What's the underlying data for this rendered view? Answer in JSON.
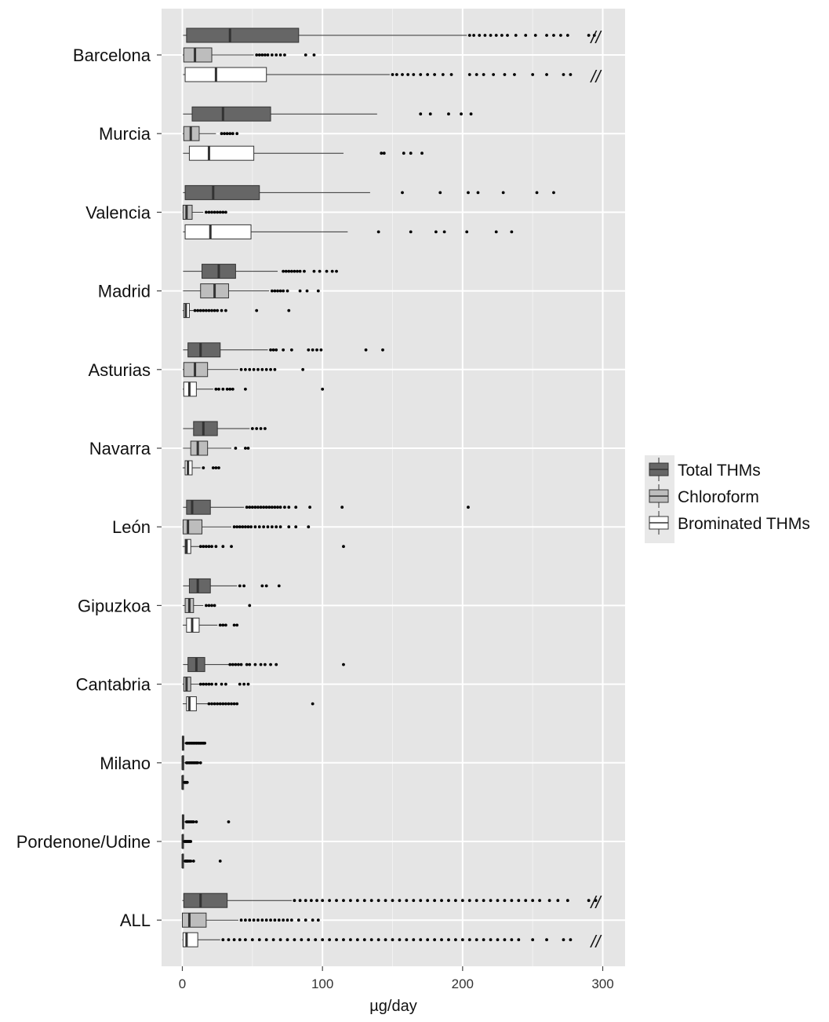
{
  "chart_data": {
    "type": "boxplot",
    "orientation": "horizontal",
    "xlabel": "µg/day",
    "xlim": [
      -15,
      315
    ],
    "xticks": [
      0,
      100,
      200,
      300
    ],
    "grid": true,
    "legend_position": "right",
    "break_marker": "//",
    "colors": {
      "Total THMs": "#666666",
      "Chloroform": "#bdbdbd",
      "Brominated THMs": "#ffffff",
      "panel": "#e5e5e5",
      "gridline": "#ffffff"
    },
    "series": [
      {
        "name": "Total THMs"
      },
      {
        "name": "Chloroform"
      },
      {
        "name": "Brominated THMs"
      }
    ],
    "categories": [
      {
        "name": "Barcelona",
        "groups": [
          {
            "series": "Total THMs",
            "whisker_low": 0.5,
            "q1": 3,
            "median": 34,
            "q3": 83,
            "whisker_high": 203,
            "outliers": [
              205,
              208,
              212,
              216,
              220,
              224,
              228,
              232,
              238,
              245,
              252,
              260,
              265,
              270,
              275,
              290,
              294
            ],
            "break": true
          },
          {
            "series": "Chloroform",
            "whisker_low": 0.3,
            "q1": 1,
            "median": 9,
            "q3": 21,
            "whisker_high": 51,
            "outliers": [
              53,
              55,
              57,
              59,
              61,
              64,
              67,
              70,
              73,
              88,
              94
            ]
          },
          {
            "series": "Brominated THMs",
            "whisker_low": 0.5,
            "q1": 2,
            "median": 24,
            "q3": 60,
            "whisker_high": 148,
            "outliers": [
              150,
              153,
              157,
              161,
              165,
              170,
              175,
              180,
              186,
              192,
              205,
              210,
              215,
              222,
              230,
              237,
              250,
              260,
              272,
              277
            ],
            "break": true
          }
        ]
      },
      {
        "name": "Murcia",
        "groups": [
          {
            "series": "Total THMs",
            "whisker_low": 0.5,
            "q1": 7,
            "median": 29,
            "q3": 63,
            "whisker_high": 139,
            "outliers": [
              170,
              177,
              190,
              199,
              206
            ]
          },
          {
            "series": "Chloroform",
            "whisker_low": 0.3,
            "q1": 1,
            "median": 6,
            "q3": 12,
            "whisker_high": 24,
            "outliers": [
              28,
              30,
              32,
              34,
              36,
              39
            ]
          },
          {
            "series": "Brominated THMs",
            "whisker_low": 0.5,
            "q1": 5,
            "median": 19,
            "q3": 51,
            "whisker_high": 115,
            "outliers": [
              142,
              144,
              158,
              163,
              171
            ]
          }
        ]
      },
      {
        "name": "Valencia",
        "groups": [
          {
            "series": "Total THMs",
            "whisker_low": 0.5,
            "q1": 2,
            "median": 22,
            "q3": 55,
            "whisker_high": 134,
            "outliers": [
              157,
              184,
              204,
              211,
              229,
              253,
              265
            ]
          },
          {
            "series": "Chloroform",
            "whisker_low": 0.2,
            "q1": 0.5,
            "median": 3,
            "q3": 7,
            "whisker_high": 15,
            "outliers": [
              17,
              19,
              21,
              23,
              25,
              27,
              29,
              31
            ]
          },
          {
            "series": "Brominated THMs",
            "whisker_low": 0.5,
            "q1": 2,
            "median": 20,
            "q3": 49,
            "whisker_high": 118,
            "outliers": [
              140,
              163,
              181,
              187,
              203,
              224,
              235
            ]
          }
        ]
      },
      {
        "name": "Madrid",
        "groups": [
          {
            "series": "Total THMs",
            "whisker_low": 0.5,
            "q1": 14,
            "median": 26,
            "q3": 38,
            "whisker_high": 68,
            "outliers": [
              72,
              74,
              76,
              78,
              80,
              82,
              84,
              87,
              94,
              98,
              103,
              107,
              110
            ]
          },
          {
            "series": "Chloroform",
            "whisker_low": 0.5,
            "q1": 13,
            "median": 23,
            "q3": 33,
            "whisker_high": 62,
            "outliers": [
              64,
              66,
              68,
              70,
              72,
              75,
              84,
              89,
              97
            ]
          },
          {
            "series": "Brominated THMs",
            "whisker_low": 0.2,
            "q1": 1,
            "median": 2.5,
            "q3": 5,
            "whisker_high": 8,
            "outliers": [
              9,
              11,
              13,
              15,
              17,
              19,
              21,
              23,
              25,
              28,
              31,
              53,
              76
            ]
          }
        ]
      },
      {
        "name": "Asturias",
        "groups": [
          {
            "series": "Total THMs",
            "whisker_low": 0.5,
            "q1": 4,
            "median": 13,
            "q3": 27,
            "whisker_high": 61,
            "outliers": [
              63,
              65,
              67,
              72,
              78,
              90,
              93,
              96,
              99,
              131,
              143
            ]
          },
          {
            "series": "Chloroform",
            "whisker_low": 0.3,
            "q1": 1,
            "median": 9,
            "q3": 18,
            "whisker_high": 40,
            "outliers": [
              42,
              45,
              48,
              51,
              54,
              57,
              60,
              63,
              66,
              86
            ]
          },
          {
            "series": "Brominated THMs",
            "whisker_low": 0.3,
            "q1": 1,
            "median": 5,
            "q3": 10,
            "whisker_high": 22,
            "outliers": [
              24,
              26,
              29,
              32,
              34,
              36,
              45,
              100
            ]
          }
        ]
      },
      {
        "name": "Navarra",
        "groups": [
          {
            "series": "Total THMs",
            "whisker_low": 0.5,
            "q1": 8,
            "median": 15,
            "q3": 25,
            "whisker_high": 48,
            "outliers": [
              50,
              53,
              56,
              59
            ]
          },
          {
            "series": "Chloroform",
            "whisker_low": 0.5,
            "q1": 6,
            "median": 11,
            "q3": 18,
            "whisker_high": 35,
            "outliers": [
              38,
              45,
              47
            ]
          },
          {
            "series": "Brominated THMs",
            "whisker_low": 0.2,
            "q1": 2,
            "median": 4,
            "q3": 7,
            "whisker_high": 13,
            "outliers": [
              15,
              22,
              24,
              26
            ]
          }
        ]
      },
      {
        "name": "León",
        "groups": [
          {
            "series": "Total THMs",
            "whisker_low": 0.5,
            "q1": 3,
            "median": 7,
            "q3": 20,
            "whisker_high": 44,
            "outliers": [
              46,
              48,
              50,
              52,
              54,
              56,
              58,
              60,
              62,
              64,
              66,
              68,
              70,
              73,
              76,
              81,
              91,
              114,
              204
            ]
          },
          {
            "series": "Chloroform",
            "whisker_low": 0.2,
            "q1": 0.5,
            "median": 4,
            "q3": 14,
            "whisker_high": 35,
            "outliers": [
              37,
              39,
              41,
              43,
              45,
              47,
              49,
              52,
              55,
              58,
              61,
              64,
              67,
              70,
              76,
              81,
              90
            ]
          },
          {
            "series": "Brominated THMs",
            "whisker_low": 0.2,
            "q1": 2,
            "median": 3,
            "q3": 6,
            "whisker_high": 12,
            "outliers": [
              13,
              15,
              17,
              19,
              21,
              24,
              29,
              35,
              115
            ]
          }
        ]
      },
      {
        "name": "Gipuzkoa",
        "groups": [
          {
            "series": "Total THMs",
            "whisker_low": 0.5,
            "q1": 5,
            "median": 11,
            "q3": 20,
            "whisker_high": 39,
            "outliers": [
              41,
              44,
              57,
              60,
              69
            ]
          },
          {
            "series": "Chloroform",
            "whisker_low": 0.3,
            "q1": 2,
            "median": 5,
            "q3": 8,
            "whisker_high": 15,
            "outliers": [
              17,
              19,
              21,
              23,
              48
            ]
          },
          {
            "series": "Brominated THMs",
            "whisker_low": 0.3,
            "q1": 3,
            "median": 7,
            "q3": 12,
            "whisker_high": 25,
            "outliers": [
              27,
              29,
              31,
              37,
              39
            ]
          }
        ]
      },
      {
        "name": "Cantabria",
        "groups": [
          {
            "series": "Total THMs",
            "whisker_low": 0.5,
            "q1": 4,
            "median": 10,
            "q3": 16,
            "whisker_high": 33,
            "outliers": [
              34,
              36,
              38,
              40,
              42,
              46,
              48,
              52,
              56,
              59,
              63,
              67,
              115
            ]
          },
          {
            "series": "Chloroform",
            "whisker_low": 0.2,
            "q1": 1,
            "median": 3,
            "q3": 6,
            "whisker_high": 12,
            "outliers": [
              13,
              15,
              17,
              19,
              21,
              24,
              28,
              31,
              41,
              44,
              47
            ]
          },
          {
            "series": "Brominated THMs",
            "whisker_low": 0.3,
            "q1": 3,
            "median": 5,
            "q3": 10,
            "whisker_high": 18,
            "outliers": [
              19,
              21,
              23,
              25,
              27,
              29,
              31,
              33,
              35,
              37,
              39,
              93
            ]
          }
        ]
      },
      {
        "name": "Milano",
        "groups": [
          {
            "series": "Total THMs",
            "whisker_low": 0,
            "q1": 0,
            "median": 0.5,
            "q3": 1,
            "whisker_high": 2,
            "outliers": [
              3,
              4,
              5,
              6,
              7,
              8,
              9,
              10,
              11,
              12,
              13,
              14,
              15,
              16
            ]
          },
          {
            "series": "Chloroform",
            "whisker_low": 0,
            "q1": 0,
            "median": 0.3,
            "q3": 1,
            "whisker_high": 2,
            "outliers": [
              3,
              4,
              5,
              6,
              7,
              8,
              9,
              10,
              11,
              13
            ]
          },
          {
            "series": "Brominated THMs",
            "whisker_low": 0,
            "q1": 0,
            "median": 0.2,
            "q3": 0.5,
            "whisker_high": 1,
            "outliers": [
              1.5,
              2,
              2.5,
              3,
              3.5
            ]
          }
        ]
      },
      {
        "name": "Pordenone/Udine",
        "groups": [
          {
            "series": "Total THMs",
            "whisker_low": 0,
            "q1": 0,
            "median": 0.5,
            "q3": 1,
            "whisker_high": 2,
            "outliers": [
              3,
              4,
              5,
              6,
              7,
              8,
              10,
              33
            ]
          },
          {
            "series": "Chloroform",
            "whisker_low": 0,
            "q1": 0,
            "median": 0.3,
            "q3": 0.5,
            "whisker_high": 1,
            "outliers": [
              1.5,
              2,
              2.5,
              3,
              3.5,
              4,
              4.5,
              5,
              5.5,
              6
            ]
          },
          {
            "series": "Brominated THMs",
            "whisker_low": 0,
            "q1": 0,
            "median": 0.3,
            "q3": 0.8,
            "whisker_high": 1.5,
            "outliers": [
              2,
              2.5,
              3,
              3.5,
              4,
              5,
              6,
              8,
              27
            ]
          }
        ]
      },
      {
        "name": "ALL",
        "groups": [
          {
            "series": "Total THMs",
            "whisker_low": 0,
            "q1": 1,
            "median": 13,
            "q3": 32,
            "whisker_high": 78,
            "outliers": [
              80,
              84,
              88,
              92,
              96,
              100,
              105,
              110,
              115,
              120,
              125,
              130,
              135,
              140,
              145,
              150,
              155,
              160,
              165,
              170,
              175,
              180,
              185,
              190,
              195,
              200,
              205,
              210,
              215,
              220,
              225,
              230,
              235,
              240,
              245,
              250,
              255,
              262,
              268,
              275,
              290,
              295
            ],
            "break": true
          },
          {
            "series": "Chloroform",
            "whisker_low": 0,
            "q1": 0,
            "median": 5,
            "q3": 17,
            "whisker_high": 40,
            "outliers": [
              42,
              45,
              48,
              51,
              54,
              57,
              60,
              63,
              66,
              69,
              72,
              75,
              78,
              83,
              88,
              93,
              97
            ]
          },
          {
            "series": "Brominated THMs",
            "whisker_low": 0,
            "q1": 0.5,
            "median": 3,
            "q3": 11,
            "whisker_high": 27,
            "outliers": [
              29,
              33,
              37,
              41,
              45,
              50,
              55,
              60,
              65,
              70,
              75,
              80,
              85,
              90,
              95,
              100,
              105,
              110,
              115,
              120,
              125,
              130,
              135,
              140,
              145,
              150,
              155,
              160,
              165,
              170,
              175,
              180,
              185,
              190,
              195,
              200,
              205,
              210,
              215,
              220,
              225,
              230,
              235,
              240,
              250,
              260,
              272,
              277
            ],
            "break": true
          }
        ]
      }
    ]
  }
}
